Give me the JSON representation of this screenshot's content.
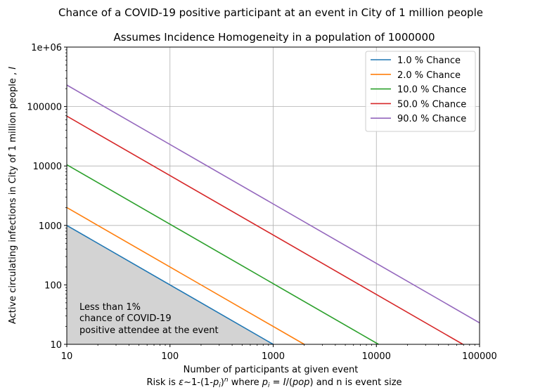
{
  "chart_data": {
    "type": "line",
    "suptitle": "Chance of a COVID-19 positive participant at an event in City of 1 million people",
    "title": "Assumes Incidence Homogeneity in a population of 1000000",
    "xlabel": "Number of participants at given event",
    "xlabel2_parts": [
      "Risk is ",
      "ε",
      "~1-(1-",
      "p",
      "i",
      ")",
      "n",
      " where ",
      "p",
      "i",
      " = ",
      "I",
      "/(",
      "pop",
      ") and n is event size"
    ],
    "ylabel_parts": [
      "Active circulating infections in City of 1 million people , ",
      "I"
    ],
    "xscale": "log",
    "yscale": "log",
    "xlim": [
      10,
      100000
    ],
    "ylim": [
      10,
      1000000
    ],
    "x_ticks": [
      10,
      100,
      1000,
      10000,
      100000
    ],
    "x_tick_labels": [
      "10",
      "100",
      "1000",
      "10000",
      "100000"
    ],
    "y_ticks": [
      10,
      100,
      1000,
      10000,
      100000,
      1000000
    ],
    "y_tick_labels": [
      "10",
      "100",
      "1000",
      "10000",
      "100000",
      "1e+06"
    ],
    "grid": true,
    "legend_position": "top-right",
    "series": [
      {
        "name": "1.0 % Chance",
        "color": "#1f77b4",
        "x": [
          10,
          1000
        ],
        "y": [
          1000,
          10
        ]
      },
      {
        "name": "2.0 % Chance",
        "color": "#ff7f0e",
        "x": [
          10,
          2000
        ],
        "y": [
          2000,
          10
        ]
      },
      {
        "name": "10.0 % Chance",
        "color": "#2ca02c",
        "x": [
          10,
          10500
        ],
        "y": [
          10500,
          10
        ]
      },
      {
        "name": "50.0 % Chance",
        "color": "#d62728",
        "x": [
          10,
          69000
        ],
        "y": [
          69000,
          10
        ]
      },
      {
        "name": "90.0 % Chance",
        "color": "#9467bd",
        "x": [
          10,
          100000
        ],
        "y": [
          230000,
          23
        ]
      }
    ],
    "shaded_region": {
      "color": "#d3d3d3",
      "x": [
        10,
        1000
      ],
      "y": [
        1000,
        10
      ]
    },
    "annotation": [
      "Less than 1%",
      "chance of COVID-19",
      "positive attendee at the event"
    ]
  }
}
